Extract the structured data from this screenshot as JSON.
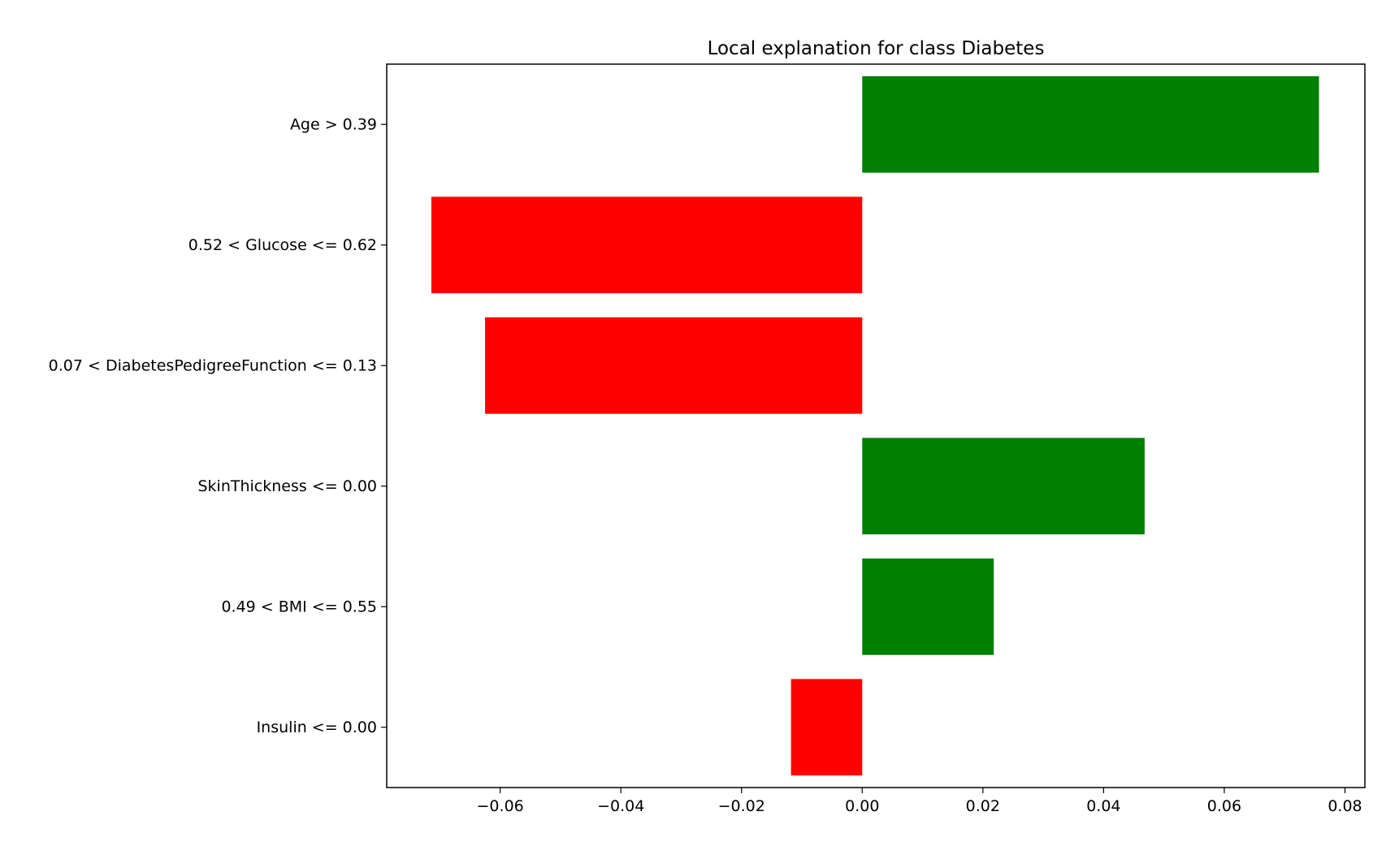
{
  "chart_data": {
    "type": "bar",
    "orientation": "horizontal",
    "title": "Local explanation for class Diabetes",
    "xlabel": "",
    "ylabel": "",
    "categories": [
      "Age > 0.39",
      "0.52 < Glucose <= 0.62",
      "0.07 < DiabetesPedigreeFunction <= 0.13",
      "SkinThickness <= 0.00",
      "0.49 < BMI <= 0.55",
      "Insulin <= 0.00"
    ],
    "values": [
      0.0757,
      -0.0714,
      -0.0625,
      0.0468,
      0.0218,
      -0.0118
    ],
    "xlim": [
      -0.0788,
      0.0833
    ],
    "xticks": [
      -0.06,
      -0.04,
      -0.02,
      0.0,
      0.02,
      0.04,
      0.06,
      0.08
    ],
    "xtick_labels": [
      "−0.06",
      "−0.04",
      "−0.02",
      "0.00",
      "0.02",
      "0.04",
      "0.06",
      "0.08"
    ],
    "colors": {
      "positive": "#008000",
      "negative": "#ff0000"
    },
    "grid": false,
    "legend": "none"
  }
}
